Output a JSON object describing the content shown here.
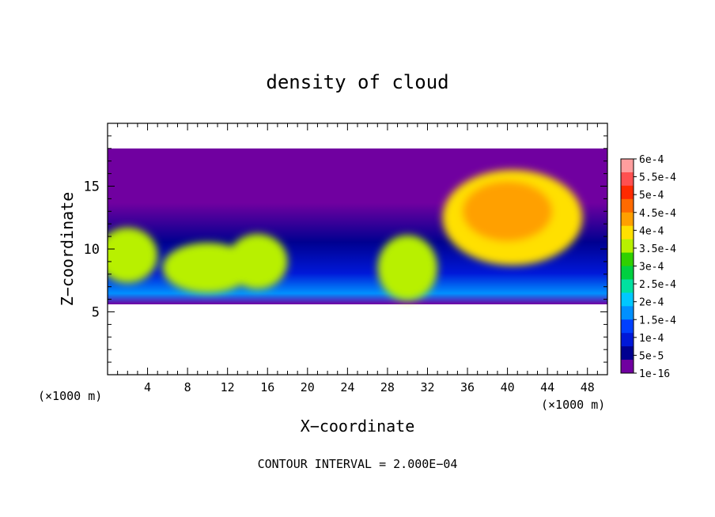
{
  "chart_data": {
    "type": "heatmap",
    "title": "density of cloud",
    "xlabel": "X−coordinate",
    "ylabel": "Z−coordinate",
    "x_unit_left": "(×1000 m)",
    "x_unit_right": "(×1000 m)",
    "xlim": [
      0,
      50
    ],
    "ylim": [
      0,
      20
    ],
    "x_ticks": [
      4,
      8,
      12,
      16,
      20,
      24,
      28,
      32,
      36,
      40,
      44,
      48
    ],
    "y_ticks": [
      5,
      10,
      15
    ],
    "footer": "CONTOUR INTERVAL = 2.000E−04",
    "cloud_layer": {
      "z_bottom": 5.6,
      "z_top": 18
    },
    "colorbar": {
      "labels": [
        "6e-4",
        "5.5e-4",
        "5e-4",
        "4.5e-4",
        "4e-4",
        "3.5e-4",
        "3e-4",
        "2.5e-4",
        "2e-4",
        "1.5e-4",
        "1e-4",
        "5e-5",
        "1e-16"
      ],
      "colors": [
        "#ff9e9e",
        "#ff5050",
        "#ff2a00",
        "#ff6a00",
        "#ffa000",
        "#ffe000",
        "#b8f000",
        "#30d000",
        "#00d040",
        "#00e0a0",
        "#00c8ff",
        "#0090ff",
        "#0040ff",
        "#0018d8",
        "#000090",
        "#7000a0"
      ]
    },
    "blobs": [
      {
        "cx": 2.0,
        "cz": 9.5,
        "rx": 3.0,
        "rz": 2.2,
        "level": 9
      },
      {
        "cx": 10.0,
        "cz": 8.5,
        "rx": 4.5,
        "rz": 2.0,
        "level": 9
      },
      {
        "cx": 15.0,
        "cz": 9.0,
        "rx": 3.0,
        "rz": 2.2,
        "level": 9
      },
      {
        "cx": 30.0,
        "cz": 8.5,
        "rx": 3.0,
        "rz": 2.6,
        "level": 9
      },
      {
        "cx": 40.5,
        "cz": 12.5,
        "rx": 7.0,
        "rz": 3.8,
        "level": 10
      },
      {
        "cx": 40.0,
        "cz": 13.0,
        "rx": 4.5,
        "rz": 2.4,
        "level": 11
      }
    ]
  }
}
